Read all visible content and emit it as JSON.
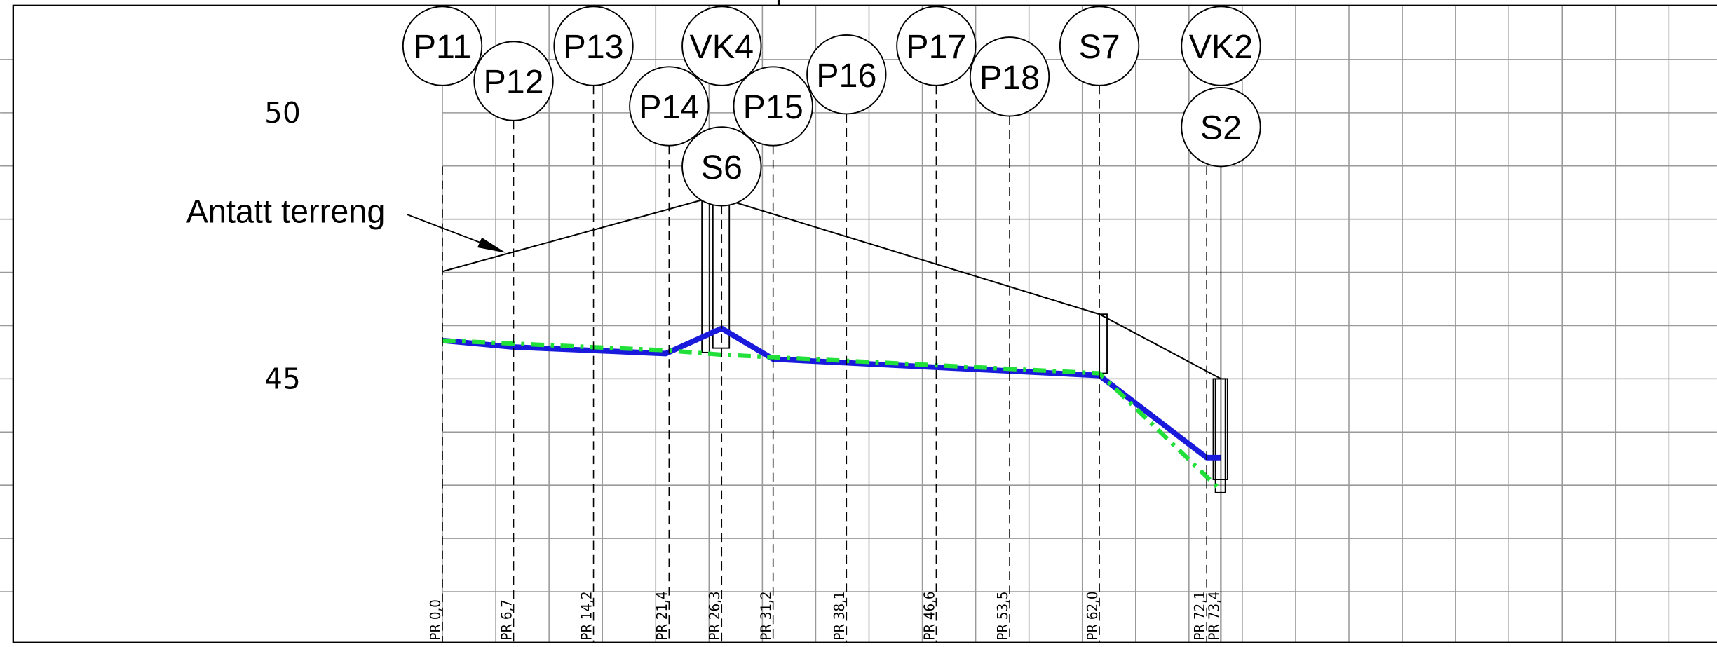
{
  "elevation_labels": [
    "50",
    "45"
  ],
  "terrain_label": "Antatt terreng",
  "nodes": [
    {
      "label": "P11"
    },
    {
      "label": "P12"
    },
    {
      "label": "P13"
    },
    {
      "label": "P14"
    },
    {
      "label": "VK4"
    },
    {
      "label": "S6"
    },
    {
      "label": "P15"
    },
    {
      "label": "P16"
    },
    {
      "label": "P17"
    },
    {
      "label": "P18"
    },
    {
      "label": "S7"
    },
    {
      "label": "VK2"
    },
    {
      "label": "S2"
    }
  ],
  "stations": [
    "PR 0,0",
    "PR 6,7",
    "PR 14,2",
    "PR 21,4",
    "PR 26,3",
    "PR 31,2",
    "PR 38,1",
    "PR 46,6",
    "PR 53,5",
    "PR 62,0",
    "PR 72,1",
    "PR 73,4"
  ]
}
